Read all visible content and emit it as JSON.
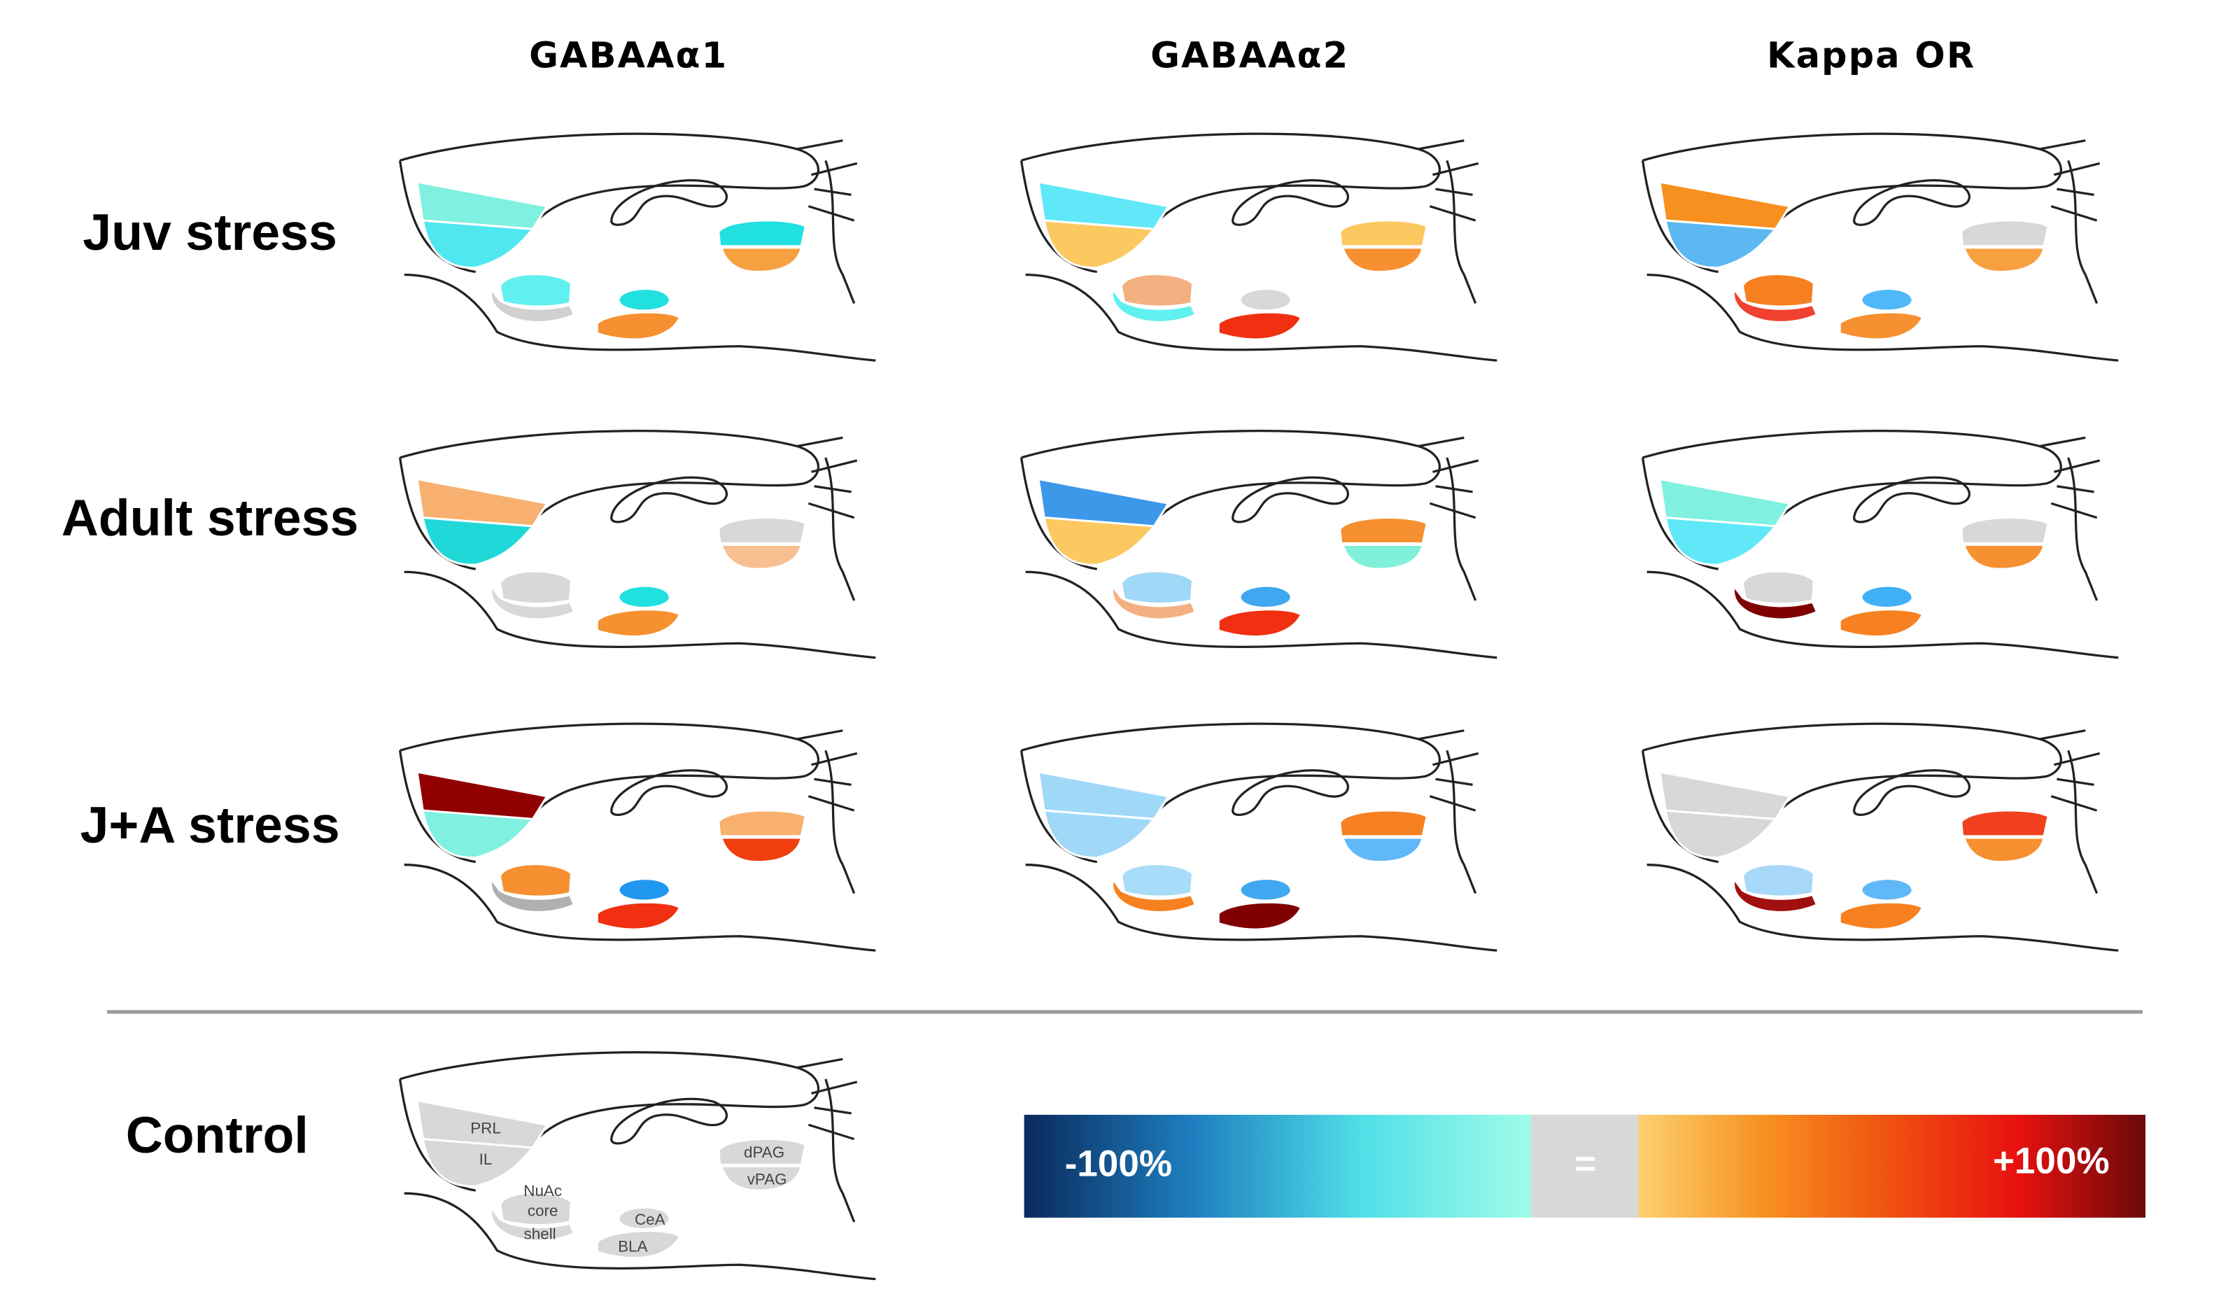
{
  "columns": [
    "GABAAα1",
    "GABAAα2",
    "Kappa OR"
  ],
  "rows": [
    {
      "label": "Juv stress",
      "panels": [
        {
          "PRL": "#80f0e0",
          "IL": "#50e8f0",
          "dPAG": "#20e0e0",
          "vPAG": "#f7a040",
          "core": "#60f0f0",
          "shell": "#d0d0d0",
          "CeA": "#20e0e0",
          "BLA": "#f79030"
        },
        {
          "PRL": "#60e8f8",
          "IL": "#fcc860",
          "dPAG": "#fcc860",
          "vPAG": "#f79030",
          "core": "#f4b080",
          "shell": "#60f0f0",
          "CeA": "#d8d8d8",
          "BLA": "#f03010"
        },
        {
          "PRL": "#f7901e",
          "IL": "#5cb8f0",
          "dPAG": "#d8d8d8",
          "vPAG": "#f7a040",
          "core": "#f78020",
          "shell": "#f04030",
          "CeA": "#50b8f8",
          "BLA": "#f79030"
        }
      ]
    },
    {
      "label": "Adult stress",
      "panels": [
        {
          "PRL": "#f7b070",
          "IL": "#20d8d8",
          "dPAG": "#d8d8d8",
          "vPAG": "#f8c090",
          "core": "#d8d8d8",
          "shell": "#d8d8d8",
          "CeA": "#20e0e0",
          "BLA": "#f79030"
        },
        {
          "PRL": "#3c98e8",
          "IL": "#fcc860",
          "dPAG": "#f79030",
          "vPAG": "#80f0d8",
          "core": "#a0d8f8",
          "shell": "#f4b080",
          "CeA": "#40a8f0",
          "BLA": "#f03010"
        },
        {
          "PRL": "#80f0e0",
          "IL": "#60e8f8",
          "dPAG": "#d8d8d8",
          "vPAG": "#f79030",
          "core": "#d8d8d8",
          "shell": "#800000",
          "CeA": "#40b0f8",
          "BLA": "#f78020"
        }
      ]
    },
    {
      "label": "J+A stress",
      "panels": [
        {
          "PRL": "#900000",
          "IL": "#80f0e0",
          "dPAG": "#f8b070",
          "vPAG": "#f04010",
          "core": "#f79030",
          "shell": "#b0b0b0",
          "CeA": "#2098f0",
          "BLA": "#f03010"
        },
        {
          "PRL": "#a0d8f8",
          "IL": "#a0d8f8",
          "dPAG": "#f78020",
          "vPAG": "#60b8f8",
          "core": "#a8dcf8",
          "shell": "#f78020",
          "CeA": "#40a8f0",
          "BLA": "#800000"
        },
        {
          "PRL": "#d8d8d8",
          "IL": "#d8d8d8",
          "dPAG": "#f04020",
          "vPAG": "#f79030",
          "core": "#a8d8f8",
          "shell": "#a01010",
          "CeA": "#60b8f8",
          "BLA": "#f78020"
        }
      ]
    }
  ],
  "control": {
    "label": "Control",
    "color": "#d8d8d8",
    "region_labels": {
      "PRL": "PRL",
      "IL": "IL",
      "dPAG": "dPAG",
      "vPAG": "vPAG",
      "NuAc": "NuAc",
      "core": "core",
      "shell": "shell",
      "CeA": "CeA",
      "BLA": "BLA"
    }
  },
  "colorbar": {
    "min_label": "-100%",
    "mid_label": "=",
    "max_label": "+100%",
    "negative_colors": [
      "#0a2a5c",
      "#1e7fc0",
      "#50e0e8",
      "#a0fce8"
    ],
    "neutral_color": "#d8d8d8",
    "positive_colors": [
      "#fcd070",
      "#f79020",
      "#f05010",
      "#e81010",
      "#6a0a0a"
    ]
  }
}
